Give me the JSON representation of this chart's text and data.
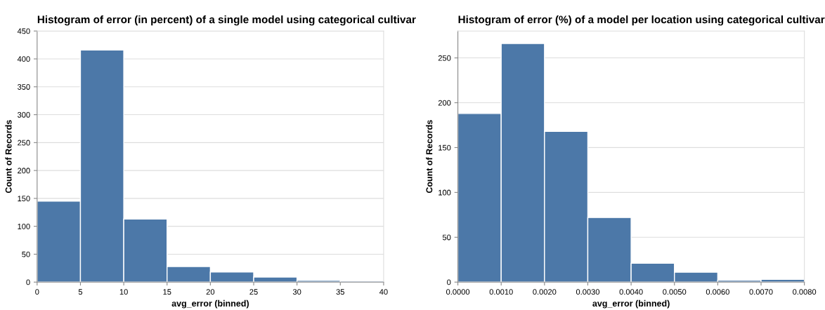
{
  "chart_data": [
    {
      "type": "histogram",
      "title": "Histogram of error (in percent) of a single model using categorical cultivar",
      "xlabel": "avg_error (binned)",
      "ylabel": "Count of Records",
      "bins": [
        0,
        5,
        10,
        15,
        20,
        25,
        30,
        35,
        40
      ],
      "values": [
        145,
        416,
        113,
        28,
        18,
        9,
        3,
        2
      ],
      "color": "#4c78a8",
      "xlim": [
        0,
        40
      ],
      "xticks": [
        0,
        5,
        10,
        15,
        20,
        25,
        30,
        35,
        40
      ],
      "ylim": [
        0,
        450
      ],
      "yticks": [
        0,
        50,
        100,
        150,
        200,
        250,
        300,
        350,
        400,
        450
      ],
      "grid": "y"
    },
    {
      "type": "histogram",
      "title": "Histogram of error (%) of a model per location using categorical cultivar",
      "xlabel": "avg_error (binned)",
      "ylabel": "Count of Records",
      "bins": [
        0,
        0.001,
        0.002,
        0.003,
        0.004,
        0.005,
        0.006,
        0.007,
        0.008
      ],
      "values": [
        188,
        266,
        168,
        72,
        21,
        11,
        2,
        3
      ],
      "color": "#4c78a8",
      "xlim": [
        0,
        0.008
      ],
      "xticks": [
        {
          "value": 0,
          "label": "0.0000"
        },
        {
          "value": 0.001,
          "label": "0.0010"
        },
        {
          "value": 0.002,
          "label": "0.0020"
        },
        {
          "value": 0.003,
          "label": "0.0030"
        },
        {
          "value": 0.004,
          "label": "0.0040"
        },
        {
          "value": 0.005,
          "label": "0.0050"
        },
        {
          "value": 0.006,
          "label": "0.0060"
        },
        {
          "value": 0.007,
          "label": "0.0070"
        },
        {
          "value": 0.008,
          "label": "0.0080"
        }
      ],
      "ylim": [
        0,
        280
      ],
      "yticks": [
        0,
        50,
        100,
        150,
        200,
        250
      ],
      "grid": "y"
    }
  ]
}
